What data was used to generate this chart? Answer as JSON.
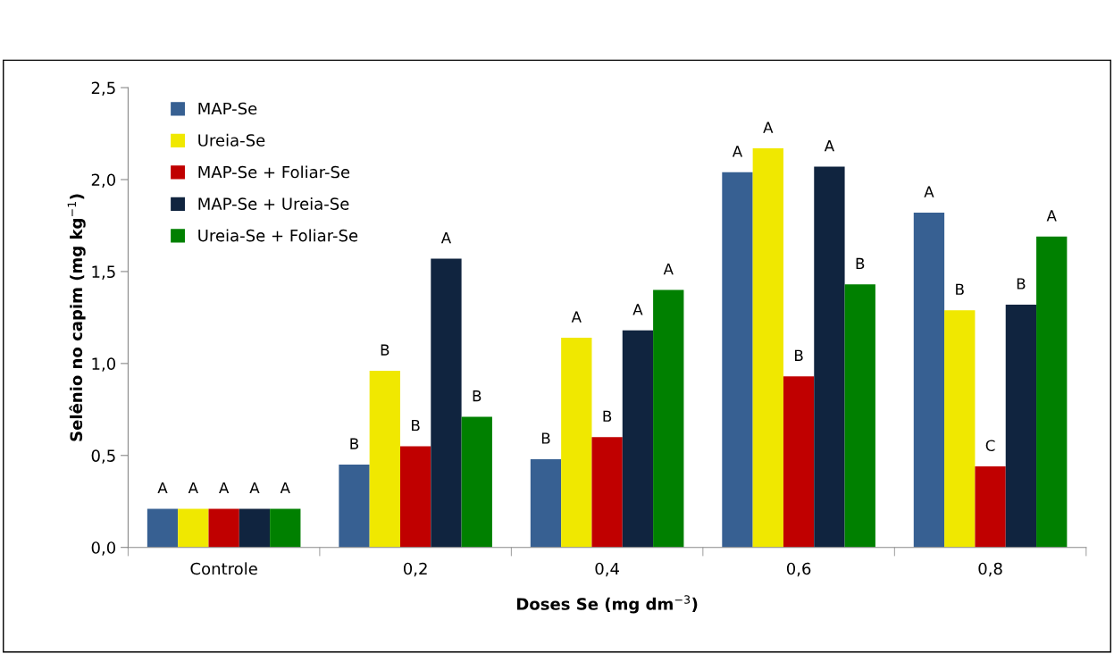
{
  "chart_data": {
    "type": "bar",
    "xlabel": "Doses Se (mg dm$^{−3}$)",
    "ylabel": "Selênio no capim (mg kg$^{−1}$)",
    "categories": [
      "Controle",
      "0,2",
      "0,4",
      "0,6",
      "0,8"
    ],
    "series": [
      {
        "name": "MAP-Se",
        "color": "#376092",
        "values": [
          0.21,
          0.45,
          0.48,
          2.04,
          1.82
        ],
        "value_labels": [
          "A",
          "B",
          "B",
          "A",
          "A"
        ]
      },
      {
        "name": "Ureia-Se",
        "color": "#f0e800",
        "values": [
          0.21,
          0.96,
          1.14,
          2.17,
          1.29
        ],
        "value_labels": [
          "A",
          "B",
          "A",
          "A",
          "B"
        ]
      },
      {
        "name": "MAP-Se + Foliar-Se",
        "color": "#c00000",
        "values": [
          0.21,
          0.55,
          0.6,
          0.93,
          0.44
        ],
        "value_labels": [
          "A",
          "B",
          "B",
          "B",
          "C"
        ]
      },
      {
        "name": "MAP-Se + Ureia-Se",
        "color": "#10243f",
        "values": [
          0.21,
          1.57,
          1.18,
          2.07,
          1.32
        ],
        "value_labels": [
          "A",
          "A",
          "A",
          "A",
          "B"
        ]
      },
      {
        "name": "Ureia-Se + Foliar-Se",
        "color": "#008000",
        "values": [
          0.21,
          0.71,
          1.4,
          1.43,
          1.69
        ],
        "value_labels": [
          "A",
          "B",
          "A",
          "B",
          "A"
        ]
      }
    ],
    "ylim": [
      0,
      2.5
    ],
    "yticks": [
      {
        "value": 0,
        "label": "0,0"
      },
      {
        "value": 0.5,
        "label": "0,5"
      },
      {
        "value": 1,
        "label": "1,0"
      },
      {
        "value": 1.5,
        "label": "1,5"
      },
      {
        "value": 2,
        "label": "2,0"
      },
      {
        "value": 2.5,
        "label": "2,5"
      }
    ],
    "grid": false,
    "legend": "top left"
  }
}
